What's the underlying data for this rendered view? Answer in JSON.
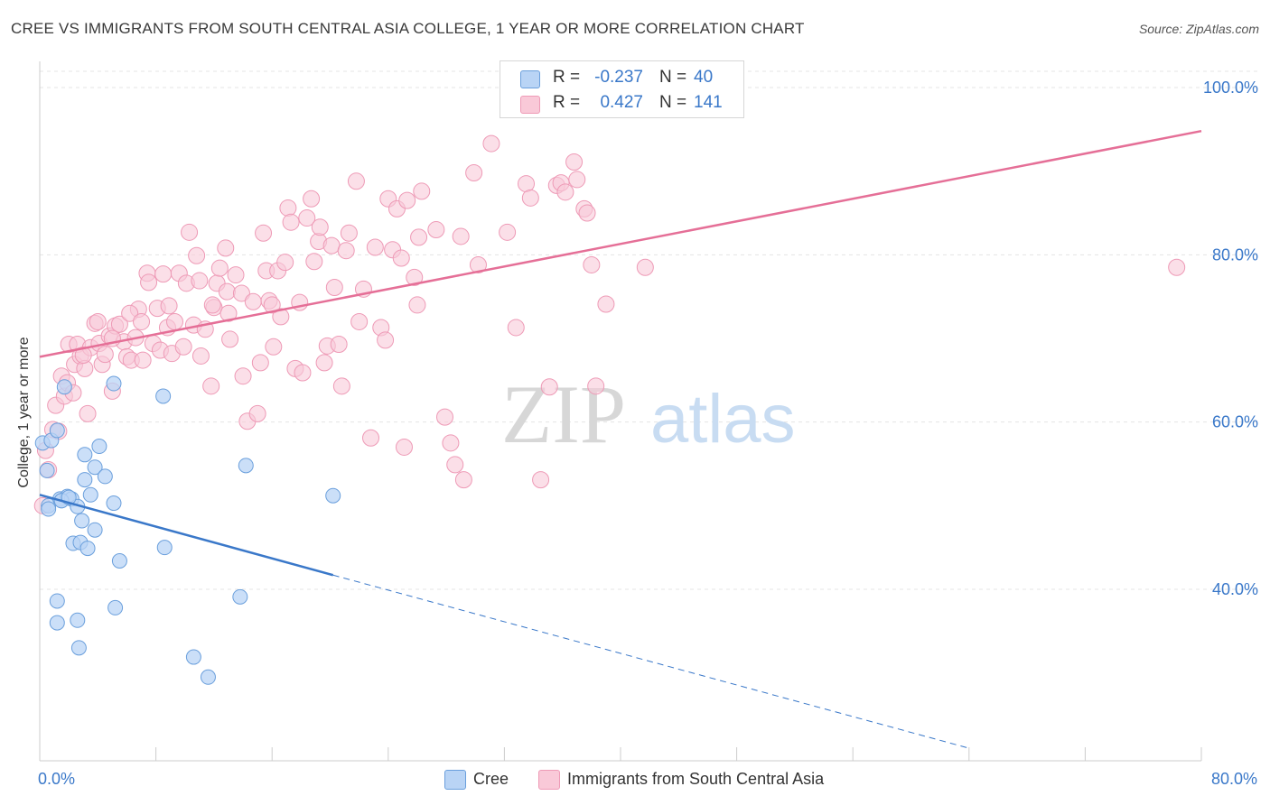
{
  "header": {
    "title": "CREE VS IMMIGRANTS FROM SOUTH CENTRAL ASIA COLLEGE, 1 YEAR OR MORE CORRELATION CHART",
    "source": "Source: ZipAtlas.com"
  },
  "legend_top": {
    "rows": [
      {
        "r_label": "R =",
        "r_value": "-0.237",
        "n_label": "N =",
        "n_value": "40"
      },
      {
        "r_label": "R =",
        "r_value": "0.427",
        "n_label": "N =",
        "n_value": "141"
      }
    ]
  },
  "legend_bottom": {
    "items": [
      {
        "label": "Cree"
      },
      {
        "label": "Immigrants from South Central Asia"
      }
    ]
  },
  "watermark": {
    "zip": "ZIP",
    "atlas": "atlas"
  },
  "colors": {
    "cree_fill": "#b9d4f5",
    "cree_stroke": "#6a9fdc",
    "cree_line": "#3a78c9",
    "imm_fill": "#f9c9d8",
    "imm_stroke": "#ee9ab6",
    "imm_line": "#e56f97",
    "tick_text": "#3a78c9",
    "grid": "#e4e4e4"
  },
  "chart_data": {
    "type": "scatter",
    "title": "CREE VS IMMIGRANTS FROM SOUTH CENTRAL ASIA COLLEGE, 1 YEAR OR MORE CORRELATION CHART",
    "xlabel": "",
    "ylabel": "College, 1 year or more",
    "xlim": [
      0,
      80
    ],
    "ylim": [
      20,
      102
    ],
    "x_tick_labels": [
      {
        "value": 0,
        "label": "0.0%"
      },
      {
        "value": 80,
        "label": "80.0%"
      }
    ],
    "y_tick_labels": [
      {
        "value": 100,
        "label": "100.0%"
      },
      {
        "value": 80,
        "label": "80.0%"
      },
      {
        "value": 60,
        "label": "60.0%"
      },
      {
        "value": 40,
        "label": "40.0%"
      }
    ],
    "grid": true,
    "legend_position": "top-center",
    "series": [
      {
        "name": "Cree",
        "R": -0.237,
        "N": 40,
        "trend": {
          "x": [
            0,
            20.2
          ],
          "y": [
            51.3,
            41.7
          ],
          "dashed_extension_to": [
            64.0,
            21.0
          ]
        },
        "points": [
          [
            0.2,
            57.5
          ],
          [
            0.5,
            54.2
          ],
          [
            0.6,
            50.0
          ],
          [
            0.8,
            57.8
          ],
          [
            1.2,
            59.0
          ],
          [
            1.4,
            50.8
          ],
          [
            1.5,
            50.6
          ],
          [
            1.7,
            64.2
          ],
          [
            1.9,
            51.1
          ],
          [
            2.2,
            50.8
          ],
          [
            2.3,
            45.5
          ],
          [
            2.6,
            49.9
          ],
          [
            2.8,
            45.6
          ],
          [
            2.9,
            48.2
          ],
          [
            3.1,
            53.1
          ],
          [
            3.1,
            56.1
          ],
          [
            3.3,
            44.9
          ],
          [
            3.5,
            51.3
          ],
          [
            3.8,
            47.1
          ],
          [
            3.8,
            54.6
          ],
          [
            4.1,
            57.1
          ],
          [
            4.5,
            53.5
          ],
          [
            5.1,
            64.6
          ],
          [
            5.1,
            50.3
          ],
          [
            5.5,
            43.4
          ],
          [
            8.5,
            63.1
          ],
          [
            8.6,
            45.0
          ],
          [
            14.2,
            54.8
          ],
          [
            20.2,
            51.2
          ],
          [
            1.2,
            38.6
          ],
          [
            1.2,
            36.0
          ],
          [
            2.6,
            36.3
          ],
          [
            2.7,
            33.0
          ],
          [
            5.2,
            37.8
          ],
          [
            10.6,
            31.9
          ],
          [
            11.6,
            29.5
          ],
          [
            13.8,
            39.1
          ],
          [
            0.6,
            49.6
          ],
          [
            1.5,
            50.6
          ],
          [
            2.0,
            51.0
          ]
        ]
      },
      {
        "name": "Immigrants from South Central Asia",
        "R": 0.427,
        "N": 141,
        "trend": {
          "x": [
            0,
            80
          ],
          "y": [
            67.8,
            94.8
          ]
        },
        "points": [
          [
            0.2,
            50.0
          ],
          [
            0.4,
            56.6
          ],
          [
            0.6,
            54.3
          ],
          [
            0.9,
            59.1
          ],
          [
            1.1,
            62.0
          ],
          [
            1.3,
            58.9
          ],
          [
            1.5,
            65.5
          ],
          [
            1.7,
            63.1
          ],
          [
            1.9,
            64.7
          ],
          [
            2.0,
            69.3
          ],
          [
            2.3,
            63.5
          ],
          [
            2.4,
            66.9
          ],
          [
            2.6,
            69.3
          ],
          [
            2.8,
            67.9
          ],
          [
            3.1,
            66.4
          ],
          [
            3.3,
            61.0
          ],
          [
            3.5,
            68.9
          ],
          [
            3.8,
            71.8
          ],
          [
            4.1,
            69.4
          ],
          [
            4.3,
            66.9
          ],
          [
            4.5,
            68.1
          ],
          [
            4.8,
            70.3
          ],
          [
            5.0,
            63.7
          ],
          [
            5.2,
            71.5
          ],
          [
            5.5,
            71.7
          ],
          [
            5.8,
            69.6
          ],
          [
            6.0,
            67.8
          ],
          [
            6.3,
            67.4
          ],
          [
            6.6,
            70.1
          ],
          [
            6.8,
            73.5
          ],
          [
            7.1,
            67.4
          ],
          [
            7.4,
            77.8
          ],
          [
            7.5,
            76.7
          ],
          [
            7.8,
            69.4
          ],
          [
            8.1,
            73.6
          ],
          [
            8.3,
            68.6
          ],
          [
            8.5,
            77.7
          ],
          [
            8.8,
            71.3
          ],
          [
            8.9,
            73.9
          ],
          [
            9.1,
            68.2
          ],
          [
            9.6,
            77.8
          ],
          [
            9.9,
            69.0
          ],
          [
            10.1,
            76.6
          ],
          [
            10.3,
            82.7
          ],
          [
            10.6,
            71.6
          ],
          [
            10.8,
            79.9
          ],
          [
            11.0,
            76.9
          ],
          [
            11.1,
            67.9
          ],
          [
            11.4,
            71.1
          ],
          [
            11.8,
            64.3
          ],
          [
            12.0,
            73.7
          ],
          [
            12.2,
            76.6
          ],
          [
            12.4,
            78.4
          ],
          [
            12.8,
            80.8
          ],
          [
            12.9,
            75.6
          ],
          [
            13.1,
            69.9
          ],
          [
            13.5,
            77.6
          ],
          [
            13.9,
            75.4
          ],
          [
            14.0,
            65.5
          ],
          [
            14.3,
            60.1
          ],
          [
            14.7,
            74.4
          ],
          [
            15.0,
            61.0
          ],
          [
            15.2,
            67.1
          ],
          [
            15.4,
            82.6
          ],
          [
            15.6,
            78.1
          ],
          [
            15.8,
            74.5
          ],
          [
            16.1,
            69.0
          ],
          [
            16.4,
            78.1
          ],
          [
            16.6,
            72.6
          ],
          [
            16.9,
            79.1
          ],
          [
            17.1,
            85.6
          ],
          [
            17.3,
            83.9
          ],
          [
            17.6,
            66.4
          ],
          [
            17.9,
            74.3
          ],
          [
            18.1,
            65.9
          ],
          [
            18.4,
            84.4
          ],
          [
            18.7,
            86.7
          ],
          [
            18.9,
            79.2
          ],
          [
            19.2,
            81.6
          ],
          [
            19.3,
            83.3
          ],
          [
            19.6,
            67.1
          ],
          [
            19.8,
            69.1
          ],
          [
            20.1,
            81.1
          ],
          [
            20.3,
            76.1
          ],
          [
            20.6,
            69.3
          ],
          [
            20.8,
            64.3
          ],
          [
            21.1,
            80.5
          ],
          [
            21.3,
            82.6
          ],
          [
            21.8,
            88.8
          ],
          [
            22.3,
            75.9
          ],
          [
            22.8,
            58.1
          ],
          [
            23.1,
            80.9
          ],
          [
            23.5,
            71.3
          ],
          [
            23.8,
            69.8
          ],
          [
            24.0,
            86.7
          ],
          [
            24.3,
            80.6
          ],
          [
            24.6,
            85.5
          ],
          [
            24.9,
            79.6
          ],
          [
            25.1,
            57.0
          ],
          [
            25.3,
            86.5
          ],
          [
            25.8,
            77.3
          ],
          [
            26.1,
            82.1
          ],
          [
            26.3,
            87.6
          ],
          [
            27.3,
            83.0
          ],
          [
            27.9,
            60.6
          ],
          [
            28.3,
            57.5
          ],
          [
            28.6,
            54.9
          ],
          [
            29.0,
            82.2
          ],
          [
            29.2,
            53.1
          ],
          [
            29.9,
            89.8
          ],
          [
            30.2,
            78.8
          ],
          [
            31.1,
            93.3
          ],
          [
            32.2,
            82.7
          ],
          [
            32.8,
            71.3
          ],
          [
            33.5,
            88.5
          ],
          [
            33.8,
            86.8
          ],
          [
            34.5,
            53.1
          ],
          [
            35.1,
            64.2
          ],
          [
            35.6,
            88.3
          ],
          [
            35.9,
            88.6
          ],
          [
            36.2,
            87.5
          ],
          [
            36.8,
            91.1
          ],
          [
            37.0,
            89.0
          ],
          [
            37.5,
            85.5
          ],
          [
            37.7,
            85.0
          ],
          [
            38.0,
            78.8
          ],
          [
            38.3,
            64.3
          ],
          [
            39.0,
            74.1
          ],
          [
            41.7,
            78.5
          ],
          [
            78.3,
            78.5
          ],
          [
            13.0,
            73.0
          ],
          [
            9.3,
            72.0
          ],
          [
            16.0,
            74.0
          ],
          [
            22.0,
            72.0
          ],
          [
            26.0,
            74.0
          ],
          [
            11.9,
            74.0
          ],
          [
            6.2,
            73.0
          ],
          [
            3.0,
            68.0
          ],
          [
            4.0,
            72.0
          ],
          [
            5.0,
            70.0
          ],
          [
            7.0,
            72.0
          ]
        ]
      }
    ]
  }
}
